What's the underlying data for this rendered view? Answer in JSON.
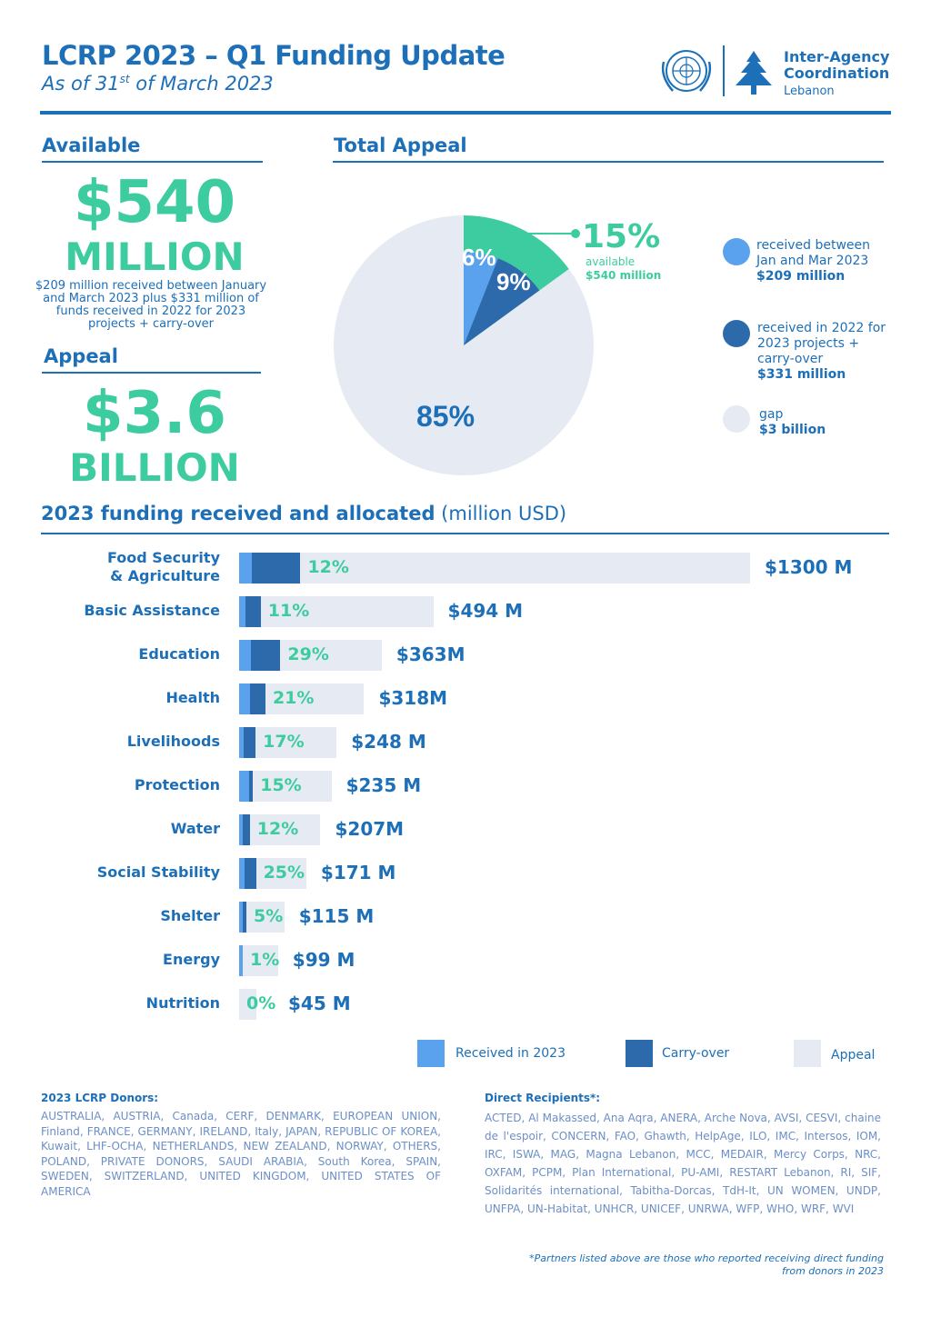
{
  "header": {
    "title": "LCRP 2023 – Q1 Funding Update",
    "subtitle_pre": "As of 31",
    "subtitle_sup": "st",
    "subtitle_post": " of March 2023",
    "org_line1": "Inter-Agency",
    "org_line2": "Coordination",
    "org_line3": "Lebanon"
  },
  "available": {
    "heading": "Available",
    "amount": "$540",
    "unit": "MILLION",
    "note": "$209 million received between January and March 2023 plus $331 million of funds received in 2022 for 2023 projects + carry-over"
  },
  "appeal": {
    "heading": "Appeal",
    "amount": "$3.6",
    "unit": "BILLION"
  },
  "total_appeal": {
    "heading": "Total Appeal",
    "slice_received_label": "6%",
    "slice_carry_label": "9%",
    "slice_gap_label": "85%",
    "available_pct": "15%",
    "available_word": "available",
    "available_amount": "$540 million",
    "legend": [
      {
        "line1": "received between",
        "line2": "Jan and Mar 2023",
        "line3": "",
        "amount": "$209 million",
        "color": "#5aa1ee"
      },
      {
        "line1": "received in 2022 for",
        "line2": "2023 projects +",
        "line3": "carry-over",
        "amount": "$331 million",
        "color": "#2c6aab"
      },
      {
        "line1": "gap",
        "line2": "",
        "line3": "",
        "amount": "$3 billion",
        "color": "#e6eaf2"
      }
    ]
  },
  "bar_section": {
    "heading": "2023 funding received and allocated",
    "heading_unit": "(million USD)",
    "legend": [
      {
        "label": "Received in 2023",
        "color": "#5aa1ee"
      },
      {
        "label": "Carry-over",
        "color": "#2c6aab"
      },
      {
        "label": "Appeal",
        "color": "#e6eaf2"
      }
    ]
  },
  "chart_data": [
    {
      "type": "pie",
      "title": "Total Appeal",
      "slices": [
        {
          "label": "received between Jan and Mar 2023",
          "value": 6,
          "amount": "$209 million"
        },
        {
          "label": "received in 2022 for 2023 projects + carry-over",
          "value": 9,
          "amount": "$331 million"
        },
        {
          "label": "gap",
          "value": 85,
          "amount": "$3 billion"
        }
      ]
    },
    {
      "type": "bar",
      "title": "2023 funding received and allocated",
      "xlabel": "",
      "ylabel": "",
      "categories": [
        "Food Security & Agriculture",
        "Basic Assistance",
        "Education",
        "Health",
        "Livelihoods",
        "Protection",
        "Water",
        "Social Stability",
        "Shelter",
        "Energy",
        "Nutrition"
      ],
      "category_lines": [
        [
          "Food Security",
          "& Agriculture"
        ],
        [
          "Basic Assistance"
        ],
        [
          "Education"
        ],
        [
          "Health"
        ],
        [
          "Livelihoods"
        ],
        [
          "Protection"
        ],
        [
          "Water"
        ],
        [
          "Social Stability"
        ],
        [
          "Shelter"
        ],
        [
          "Energy"
        ],
        [
          "Nutrition"
        ]
      ],
      "appeal_labels": [
        "$1300 M",
        "$494 M",
        "$363M",
        "$318M",
        "$248 M",
        "$235 M",
        "$207M",
        "$171 M",
        "$115 M",
        "$99 M",
        "$45 M"
      ],
      "funded_labels": [
        "12%",
        "11%",
        "29%",
        "21%",
        "17%",
        "15%",
        "12%",
        "25%",
        "5%",
        "1%",
        "0%"
      ],
      "series": [
        {
          "name": "Appeal",
          "values": [
            1300,
            494,
            363,
            318,
            248,
            235,
            207,
            171,
            115,
            99,
            45
          ]
        },
        {
          "name": "Received in 2023",
          "values": [
            33,
            17,
            30,
            28,
            12,
            26,
            7,
            13,
            4,
            1,
            0
          ]
        },
        {
          "name": "Carry-over",
          "values": [
            123,
            38,
            75,
            39,
            30,
            9,
            18,
            30,
            2,
            0,
            0
          ]
        }
      ]
    }
  ],
  "footer": {
    "donors_heading": "2023 LCRP Donors:",
    "donors_text": "AUSTRALIA, AUSTRIA, Canada, CERF, DENMARK, EUROPEAN UNION, Finland, FRANCE, GERMANY, IRELAND, Italy, JAPAN, REPUBLIC OF KOREA, Kuwait, LHF-OCHA, NETHERLANDS, NEW ZEALAND, NORWAY, OTHERS, POLAND, PRIVATE DONORS, SAUDI ARABIA, South Korea, SPAIN, SWEDEN, SWITZERLAND, UNITED KINGDOM, UNITED STATES OF AMERICA",
    "recipients_heading": "Direct Recipients*:",
    "recipients_text": "ACTED, Al Makassed, Ana Aqra, ANERA, Arche Nova, AVSI, CESVI, chaine de l'espoir, CONCERN, FAO, Ghawth, HelpAge, ILO, IMC, Intersos, IOM, IRC, ISWA, MAG, Magna Lebanon, MCC, MEDAIR, Mercy Corps, NRC, OXFAM, PCPM, Plan International, PU-AMI, RESTART Lebanon, RI, SIF, Solidarités international, Tabitha-Dorcas, TdH-It, UN WOMEN, UNDP, UNFPA, UN-Habitat, UNHCR, UNICEF, UNRWA, WFP, WHO, WRF, WVI",
    "note_line1": "*Partners listed above are those who reported receiving direct funding",
    "note_line2": "from donors in 2023"
  }
}
